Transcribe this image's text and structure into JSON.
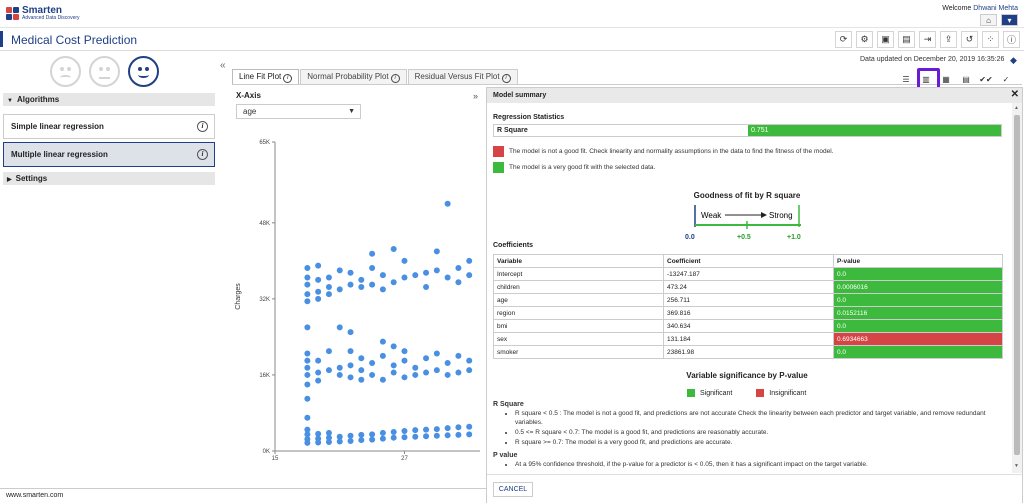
{
  "header": {
    "logo_name": "Smarten",
    "logo_tagline": "Advanced Data Discovery",
    "welcome_prefix": "Welcome",
    "user_name": "Dhwani Mehta"
  },
  "app": {
    "title": "Medical Cost Prediction"
  },
  "toolbar_icons": [
    "refresh-icon",
    "settings-icon",
    "save-icon",
    "save-as-icon",
    "export-icon",
    "share-icon",
    "reload-icon",
    "grid-icon",
    "help-icon"
  ],
  "sidebar": {
    "algorithms_label": "Algorithms",
    "items": [
      {
        "label": "Simple linear regression",
        "active": false
      },
      {
        "label": "Multiple linear regression",
        "active": true
      }
    ],
    "settings_label": "Settings"
  },
  "status": {
    "updated_text": "Data updated on December 20, 2019 16:35:26"
  },
  "tabs": [
    {
      "label": "Line Fit Plot",
      "active": true
    },
    {
      "label": "Normal Probability Plot",
      "active": false
    },
    {
      "label": "Residual Versus Fit Plot",
      "active": false
    }
  ],
  "controls": {
    "xaxis_label": "X-Axis",
    "xaxis_value": "age"
  },
  "chart_data": {
    "type": "scatter",
    "ylabel": "Charges",
    "yticks": [
      "0K",
      "16K",
      "32K",
      "48K",
      "65K"
    ],
    "xticks": [
      "15",
      "27"
    ],
    "ylim": [
      0,
      65000
    ],
    "xlim": [
      15,
      34
    ],
    "points": [
      [
        18,
        1700
      ],
      [
        18,
        2500
      ],
      [
        18,
        3500
      ],
      [
        18,
        4500
      ],
      [
        18,
        7000
      ],
      [
        18,
        11000
      ],
      [
        18,
        14000
      ],
      [
        18,
        16000
      ],
      [
        18,
        17500
      ],
      [
        18,
        19000
      ],
      [
        18,
        20500
      ],
      [
        18,
        26000
      ],
      [
        18,
        31500
      ],
      [
        18,
        33000
      ],
      [
        18,
        35000
      ],
      [
        18,
        36500
      ],
      [
        18,
        38500
      ],
      [
        19,
        1800
      ],
      [
        19,
        2600
      ],
      [
        19,
        3600
      ],
      [
        19,
        14800
      ],
      [
        19,
        16500
      ],
      [
        19,
        19000
      ],
      [
        19,
        32000
      ],
      [
        19,
        33500
      ],
      [
        19,
        36000
      ],
      [
        19,
        39000
      ],
      [
        20,
        1900
      ],
      [
        20,
        2800
      ],
      [
        20,
        3800
      ],
      [
        20,
        17000
      ],
      [
        20,
        21000
      ],
      [
        20,
        33000
      ],
      [
        20,
        34500
      ],
      [
        20,
        36500
      ],
      [
        21,
        2000
      ],
      [
        21,
        3000
      ],
      [
        21,
        16000
      ],
      [
        21,
        17500
      ],
      [
        21,
        26000
      ],
      [
        21,
        34000
      ],
      [
        21,
        38000
      ],
      [
        22,
        2100
      ],
      [
        22,
        3200
      ],
      [
        22,
        15500
      ],
      [
        22,
        18000
      ],
      [
        22,
        21000
      ],
      [
        22,
        25000
      ],
      [
        22,
        35000
      ],
      [
        22,
        37500
      ],
      [
        23,
        2300
      ],
      [
        23,
        3400
      ],
      [
        23,
        15000
      ],
      [
        23,
        17000
      ],
      [
        23,
        19500
      ],
      [
        23,
        34500
      ],
      [
        23,
        36000
      ],
      [
        24,
        2400
      ],
      [
        24,
        3500
      ],
      [
        24,
        16000
      ],
      [
        24,
        18500
      ],
      [
        24,
        35000
      ],
      [
        24,
        38500
      ],
      [
        24,
        41500
      ],
      [
        25,
        2600
      ],
      [
        25,
        3800
      ],
      [
        25,
        15000
      ],
      [
        25,
        20000
      ],
      [
        25,
        23000
      ],
      [
        25,
        34000
      ],
      [
        25,
        37000
      ],
      [
        26,
        2800
      ],
      [
        26,
        4000
      ],
      [
        26,
        16500
      ],
      [
        26,
        18000
      ],
      [
        26,
        22000
      ],
      [
        26,
        35500
      ],
      [
        26,
        42500
      ],
      [
        27,
        2900
      ],
      [
        27,
        4200
      ],
      [
        27,
        15500
      ],
      [
        27,
        19000
      ],
      [
        27,
        21000
      ],
      [
        27,
        36500
      ],
      [
        27,
        40000
      ],
      [
        28,
        3000
      ],
      [
        28,
        4400
      ],
      [
        28,
        16000
      ],
      [
        28,
        17500
      ],
      [
        28,
        37000
      ],
      [
        29,
        3100
      ],
      [
        29,
        4500
      ],
      [
        29,
        16500
      ],
      [
        29,
        19500
      ],
      [
        29,
        34500
      ],
      [
        29,
        37500
      ],
      [
        30,
        3200
      ],
      [
        30,
        4600
      ],
      [
        30,
        17000
      ],
      [
        30,
        20500
      ],
      [
        30,
        38000
      ],
      [
        30,
        42000
      ],
      [
        31,
        3300
      ],
      [
        31,
        4800
      ],
      [
        31,
        16000
      ],
      [
        31,
        18500
      ],
      [
        31,
        36500
      ],
      [
        31,
        52000
      ],
      [
        32,
        3400
      ],
      [
        32,
        5000
      ],
      [
        32,
        16500
      ],
      [
        32,
        20000
      ],
      [
        32,
        35500
      ],
      [
        32,
        38500
      ],
      [
        33,
        3500
      ],
      [
        33,
        5100
      ],
      [
        33,
        17000
      ],
      [
        33,
        19000
      ],
      [
        33,
        37000
      ],
      [
        33,
        40000
      ]
    ]
  },
  "modal": {
    "title": "Model summary",
    "reg_stats_label": "Regression Statistics",
    "r_square_label": "R Square",
    "r_square_value": "0.751",
    "legend_red": "The model is not a good fit. Check linearity and normality assumptions in the data to find the fitness of the model.",
    "legend_green": "The model is a very good fit with the selected data.",
    "gof_title": "Goodness of fit by R square",
    "gof_weak": "Weak",
    "gof_strong": "Strong",
    "gof_ticks": [
      "0.0",
      "+0.5",
      "+1.0"
    ],
    "coefficients_label": "Coefficients",
    "coef_headers": [
      "Variable",
      "Coefficient",
      "P-value"
    ],
    "coef_rows": [
      {
        "variable": "Intercept",
        "coefficient": "-13247.187",
        "pvalue": "0.0",
        "significant": true
      },
      {
        "variable": "children",
        "coefficient": "473.24",
        "pvalue": "0.0006016",
        "significant": true
      },
      {
        "variable": "age",
        "coefficient": "256.711",
        "pvalue": "0.0",
        "significant": true
      },
      {
        "variable": "region",
        "coefficient": "369.816",
        "pvalue": "0.0152116",
        "significant": true
      },
      {
        "variable": "bmi",
        "coefficient": "340.634",
        "pvalue": "0.0",
        "significant": true
      },
      {
        "variable": "sex",
        "coefficient": "131.184",
        "pvalue": "0.6934663",
        "significant": false
      },
      {
        "variable": "smoker",
        "coefficient": "23861.98",
        "pvalue": "0.0",
        "significant": true
      }
    ],
    "sig_title": "Variable significance by P-value",
    "sig_significant": "Significant",
    "sig_insignificant": "Insignificant",
    "notes_rsq_label": "R Square",
    "notes_rsq": [
      "R square < 0.5 : The model is not a good fit, and predictions are not accurate Check the linearity between each predictor and target variable, and remove redundant variables.",
      "0.5 <= R square < 0.7: The model is a good fit, and predictions are reasonably accurate.",
      "R square >= 0.7: The model is a very good fit, and predictions are accurate."
    ],
    "notes_pvalue_label": "P value",
    "notes_pvalue": [
      "At a 95% confidence threshold, if the p-value for a predictor is < 0.05, then it has a significant impact on the target variable."
    ],
    "cancel_label": "CANCEL"
  },
  "footer": {
    "text": "www.smarten.com"
  },
  "colors": {
    "brand": "#1f3f86",
    "good": "#3dba3d",
    "bad": "#d64545",
    "highlight": "#6a1bd6",
    "point": "#4a90e2"
  }
}
